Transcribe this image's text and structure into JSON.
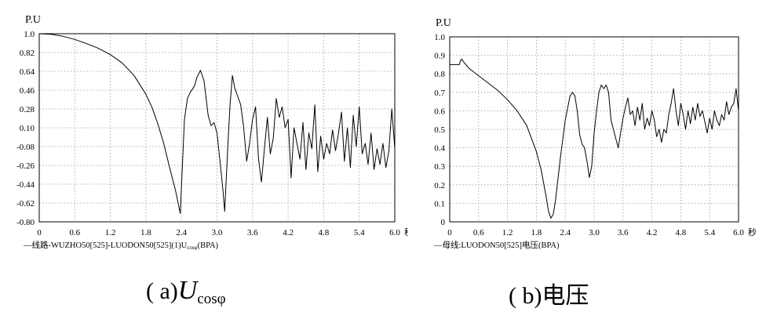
{
  "charts_meta": {
    "caption_a_prefix": "( a)",
    "caption_a_var": "U",
    "caption_a_sub": "cosφ",
    "caption_b": "(  b)电压"
  },
  "chart_data": [
    {
      "type": "line",
      "id": "a",
      "ylabel": "P.U",
      "xunit": "秒",
      "legend_text": "—线路-WUZHO50[525]-LUODON50[525](1)U",
      "legend_sub": "cosφ",
      "legend_tail": "(BPA)",
      "xlim": [
        0,
        6.0
      ],
      "ylim": [
        -0.8,
        1.0
      ],
      "xticks": [
        0,
        0.6,
        1.2,
        1.8,
        2.4,
        3.0,
        3.6,
        4.2,
        4.8,
        5.4,
        6.0
      ],
      "xtick_labels": [
        "0",
        "0.6",
        "1.2",
        "1.8",
        "2.4",
        "3.0",
        "3.6",
        "4.2",
        "4.8",
        "5.4",
        "6.0"
      ],
      "yticks": [
        1.0,
        0.82,
        0.64,
        0.46,
        0.28,
        0.1,
        -0.08,
        -0.26,
        -0.44,
        -0.62,
        -0.8
      ],
      "ytick_labels": [
        "1.0",
        "0.82",
        "0.64",
        "0.46",
        "0.28",
        "0.10",
        "-0.08",
        "-0.26",
        "-0.44",
        "-0.62",
        "-0.80"
      ],
      "grid": true,
      "legend": "bottom-left",
      "x": [
        0,
        0.2,
        0.4,
        0.6,
        0.8,
        1.0,
        1.2,
        1.4,
        1.6,
        1.8,
        1.9,
        2.0,
        2.1,
        2.2,
        2.3,
        2.38,
        2.45,
        2.5,
        2.55,
        2.62,
        2.66,
        2.72,
        2.78,
        2.85,
        2.9,
        2.95,
        3.0,
        3.05,
        3.1,
        3.13,
        3.18,
        3.22,
        3.26,
        3.3,
        3.35,
        3.4,
        3.45,
        3.5,
        3.55,
        3.6,
        3.65,
        3.7,
        3.75,
        3.8,
        3.85,
        3.9,
        3.95,
        4.0,
        4.05,
        4.1,
        4.15,
        4.2,
        4.25,
        4.3,
        4.35,
        4.4,
        4.45,
        4.5,
        4.55,
        4.6,
        4.65,
        4.7,
        4.75,
        4.8,
        4.85,
        4.9,
        4.95,
        5.0,
        5.05,
        5.1,
        5.15,
        5.2,
        5.25,
        5.3,
        5.35,
        5.4,
        5.45,
        5.5,
        5.55,
        5.6,
        5.65,
        5.7,
        5.75,
        5.8,
        5.85,
        5.9,
        5.95,
        6.0
      ],
      "y": [
        1.0,
        0.995,
        0.975,
        0.945,
        0.905,
        0.86,
        0.8,
        0.72,
        0.6,
        0.42,
        0.3,
        0.14,
        -0.05,
        -0.28,
        -0.5,
        -0.72,
        0.18,
        0.38,
        0.44,
        0.5,
        0.58,
        0.65,
        0.55,
        0.22,
        0.12,
        0.15,
        0.05,
        -0.22,
        -0.5,
        -0.7,
        -0.1,
        0.32,
        0.6,
        0.48,
        0.4,
        0.32,
        0.1,
        -0.22,
        -0.05,
        0.18,
        0.3,
        -0.2,
        -0.42,
        -0.1,
        0.2,
        -0.15,
        0.0,
        0.38,
        0.2,
        0.3,
        0.1,
        0.18,
        -0.38,
        0.1,
        -0.05,
        -0.2,
        0.15,
        -0.3,
        0.05,
        -0.1,
        0.32,
        -0.32,
        0.02,
        -0.2,
        -0.05,
        -0.15,
        0.08,
        -0.12,
        0.05,
        0.25,
        -0.22,
        0.1,
        -0.28,
        0.22,
        -0.08,
        0.3,
        -0.15,
        -0.05,
        -0.25,
        0.05,
        -0.3,
        -0.1,
        -0.25,
        -0.05,
        -0.28,
        -0.12,
        0.28,
        -0.1
      ]
    },
    {
      "type": "line",
      "id": "b",
      "ylabel": "P.U",
      "xunit": "秒",
      "legend_text": "—母线:LUODON50[525]电压(BPA)",
      "xlim": [
        0,
        6.0
      ],
      "ylim": [
        0,
        1.0
      ],
      "xticks": [
        0,
        0.6,
        1.2,
        1.8,
        2.4,
        3.0,
        3.6,
        4.2,
        4.8,
        5.4,
        6.0
      ],
      "xtick_labels": [
        "0",
        "0.6",
        "1.2",
        "1.8",
        "2.4",
        "3.0",
        "3.6",
        "4.2",
        "4.8",
        "5.4",
        "6.0"
      ],
      "yticks": [
        1.0,
        0.9,
        0.8,
        0.7,
        0.6,
        0.5,
        0.4,
        0.3,
        0.2,
        0.1,
        0
      ],
      "ytick_labels": [
        "1.0",
        "0.9",
        "0.8",
        "0.7",
        "0.6",
        "0.5",
        "0.4",
        "0.3",
        "0.2",
        "0.1",
        "0"
      ],
      "grid": true,
      "legend": "bottom-left",
      "x": [
        0,
        0.1,
        0.2,
        0.22,
        0.25,
        0.3,
        0.4,
        0.6,
        0.8,
        1.0,
        1.2,
        1.4,
        1.6,
        1.8,
        1.9,
        2.0,
        2.05,
        2.1,
        2.15,
        2.2,
        2.3,
        2.4,
        2.5,
        2.55,
        2.6,
        2.65,
        2.7,
        2.75,
        2.8,
        2.85,
        2.9,
        2.95,
        3.0,
        3.05,
        3.1,
        3.15,
        3.2,
        3.25,
        3.3,
        3.35,
        3.4,
        3.45,
        3.5,
        3.55,
        3.6,
        3.65,
        3.7,
        3.75,
        3.8,
        3.85,
        3.9,
        3.95,
        4.0,
        4.05,
        4.1,
        4.15,
        4.2,
        4.25,
        4.3,
        4.35,
        4.4,
        4.45,
        4.5,
        4.55,
        4.6,
        4.65,
        4.7,
        4.75,
        4.8,
        4.85,
        4.9,
        4.95,
        5.0,
        5.05,
        5.1,
        5.15,
        5.2,
        5.25,
        5.3,
        5.35,
        5.4,
        5.45,
        5.5,
        5.55,
        5.6,
        5.65,
        5.7,
        5.75,
        5.8,
        5.85,
        5.9,
        5.95,
        6.0
      ],
      "y": [
        0.85,
        0.85,
        0.85,
        0.87,
        0.88,
        0.86,
        0.83,
        0.79,
        0.75,
        0.71,
        0.66,
        0.6,
        0.52,
        0.38,
        0.28,
        0.14,
        0.06,
        0.02,
        0.04,
        0.12,
        0.35,
        0.55,
        0.68,
        0.7,
        0.68,
        0.6,
        0.47,
        0.42,
        0.4,
        0.33,
        0.24,
        0.3,
        0.48,
        0.6,
        0.7,
        0.74,
        0.72,
        0.74,
        0.7,
        0.55,
        0.5,
        0.45,
        0.4,
        0.48,
        0.56,
        0.62,
        0.67,
        0.58,
        0.6,
        0.52,
        0.62,
        0.55,
        0.64,
        0.5,
        0.56,
        0.52,
        0.6,
        0.55,
        0.46,
        0.5,
        0.43,
        0.5,
        0.48,
        0.58,
        0.64,
        0.72,
        0.6,
        0.52,
        0.64,
        0.58,
        0.5,
        0.6,
        0.53,
        0.62,
        0.55,
        0.64,
        0.57,
        0.6,
        0.54,
        0.48,
        0.56,
        0.5,
        0.6,
        0.55,
        0.52,
        0.58,
        0.55,
        0.65,
        0.58,
        0.62,
        0.64,
        0.72,
        0.6
      ]
    }
  ]
}
